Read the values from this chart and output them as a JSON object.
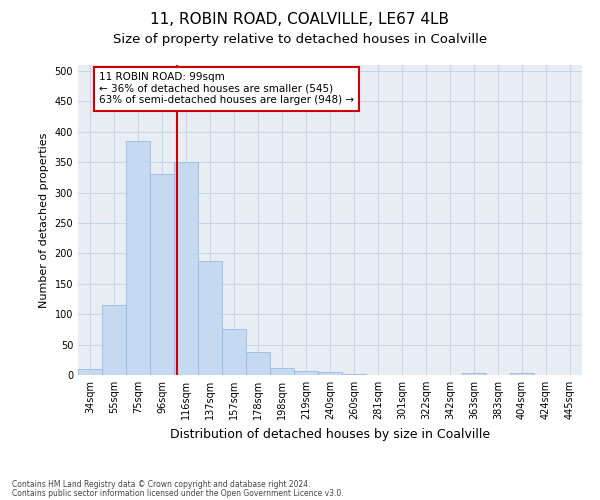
{
  "title1": "11, ROBIN ROAD, COALVILLE, LE67 4LB",
  "title2": "Size of property relative to detached houses in Coalville",
  "xlabel": "Distribution of detached houses by size in Coalville",
  "ylabel": "Number of detached properties",
  "categories": [
    "34sqm",
    "55sqm",
    "75sqm",
    "96sqm",
    "116sqm",
    "137sqm",
    "157sqm",
    "178sqm",
    "198sqm",
    "219sqm",
    "240sqm",
    "260sqm",
    "281sqm",
    "301sqm",
    "322sqm",
    "342sqm",
    "363sqm",
    "383sqm",
    "404sqm",
    "424sqm",
    "445sqm"
  ],
  "values": [
    10,
    115,
    385,
    330,
    350,
    188,
    75,
    38,
    12,
    7,
    5,
    1,
    0,
    0,
    0,
    0,
    3,
    0,
    3,
    0,
    0
  ],
  "bar_color": "#c5d9f1",
  "bar_edge_color": "#8db4e2",
  "red_line_x": 3.62,
  "annotation_text": "11 ROBIN ROAD: 99sqm\n← 36% of detached houses are smaller (545)\n63% of semi-detached houses are larger (948) →",
  "annotation_box_color": "#ffffff",
  "annotation_box_edge_color": "#cc0000",
  "ylim": [
    0,
    510
  ],
  "yticks": [
    0,
    50,
    100,
    150,
    200,
    250,
    300,
    350,
    400,
    450,
    500
  ],
  "grid_color": "#c8d4e8",
  "background_color": "#e8edf4",
  "footer1": "Contains HM Land Registry data © Crown copyright and database right 2024.",
  "footer2": "Contains public sector information licensed under the Open Government Licence v3.0.",
  "title1_fontsize": 11,
  "title2_fontsize": 9.5,
  "tick_fontsize": 7,
  "ylabel_fontsize": 8,
  "xlabel_fontsize": 9,
  "annotation_fontsize": 7.5,
  "footer_fontsize": 5.5
}
